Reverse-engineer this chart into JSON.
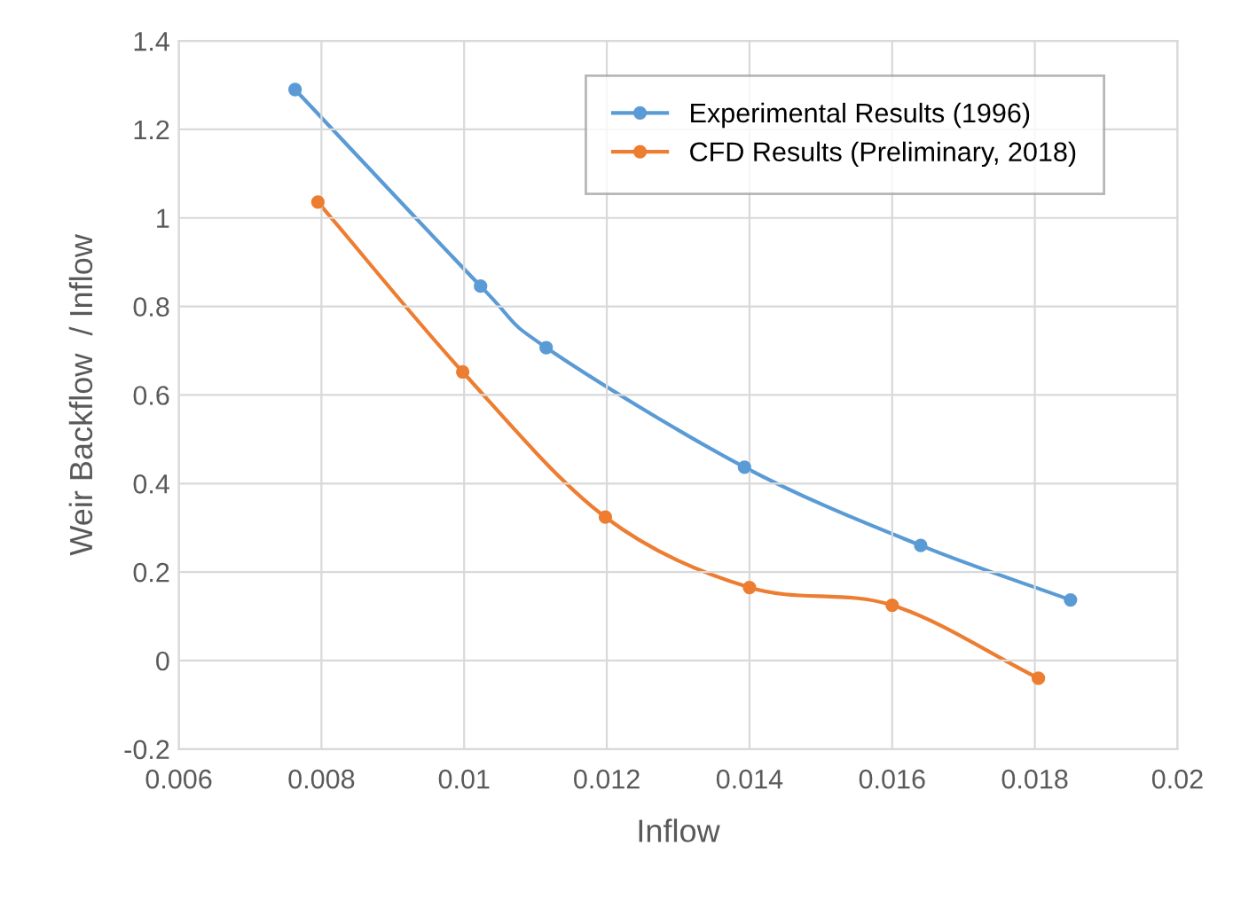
{
  "chart_data": {
    "type": "line",
    "xlabel": "Inflow",
    "ylabel": "Weir Backflow  / Inflow",
    "xlim": [
      0.006,
      0.02
    ],
    "xticks": [
      0.006,
      0.008,
      0.01,
      0.012,
      0.014,
      0.016,
      0.018,
      0.02
    ],
    "ylim": [
      -0.2,
      1.4
    ],
    "yticks": [
      -0.2,
      0,
      0.2,
      0.4,
      0.6,
      0.8,
      1,
      1.2,
      1.4
    ],
    "grid": true,
    "legend": "top right",
    "marker": "circle",
    "line_style": "solid",
    "series": [
      {
        "name": "Experimental Results (1996)",
        "color": "#5b9bd5",
        "x": [
          0.00763,
          0.01023,
          0.01115,
          0.01393,
          0.0164,
          0.0185
        ],
        "values": [
          1.29,
          0.846,
          0.707,
          0.437,
          0.26,
          0.137
        ]
      },
      {
        "name": "CFD Results (Preliminary, 2018)",
        "color": "#ed7d31",
        "x": [
          0.00795,
          0.00998,
          0.01198,
          0.014,
          0.016,
          0.01805
        ],
        "values": [
          1.036,
          0.652,
          0.324,
          0.165,
          0.125,
          -0.04
        ]
      }
    ]
  }
}
